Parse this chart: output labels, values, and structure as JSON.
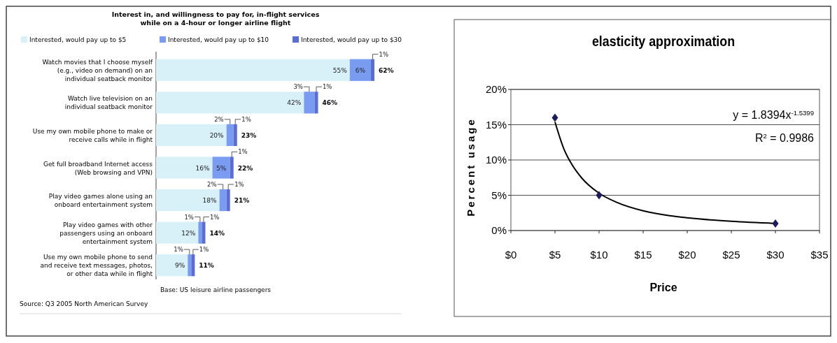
{
  "chart_data": [
    {
      "type": "bar",
      "orientation": "horizontal",
      "stacked": true,
      "title": "Interest in, and willingness to pay for, in-flight services\nwhile on a 4-hour or longer airline flight",
      "categories": [
        "Watch movies that I choose myself (e.g., video on demand) on an individual seatback monitor",
        "Watch live television on an individual seatback monitor",
        "Use my own mobile phone to make or receive calls while in flight",
        "Get full broadband Internet access (Web browsing and VPN)",
        "Play video games alone using an onboard entertainment system",
        "Play video games with other passengers using an onboard entertainment system",
        "Use my own mobile phone to send and receive text messages, photos, or other data while in flight"
      ],
      "series": [
        {
          "name": "Interested, would pay up to $5",
          "color": "#d8f0f8",
          "values": [
            55,
            42,
            20,
            16,
            18,
            12,
            9
          ],
          "value_labels": [
            "55%",
            "42%",
            "20%",
            "16%",
            "18%",
            "12%",
            "9%"
          ]
        },
        {
          "name": "Interested, would pay up to $10",
          "color": "#7a9cf0",
          "values": [
            6,
            3,
            2,
            5,
            2,
            1,
            1
          ],
          "value_labels": [
            "6%",
            "3%",
            "2%",
            "5%",
            "2%",
            "1%",
            "1%"
          ]
        },
        {
          "name": "Interested, would pay up to $30",
          "color": "#5a6cd6",
          "values": [
            1,
            1,
            1,
            1,
            1,
            1,
            1
          ],
          "value_labels": [
            "1%",
            "1%",
            "1%",
            "1%",
            "1%",
            "1%",
            "1%"
          ]
        }
      ],
      "totals": [
        "62%",
        "46%",
        "23%",
        "22%",
        "21%",
        "14%",
        "11%"
      ],
      "legend": "top left",
      "tick_labels": "y",
      "annotations": [
        "Base: US leisure airline passengers",
        "Source: Q3 2005 North American Survey"
      ]
    },
    {
      "type": "scatter",
      "title": "elasticity approximation",
      "xlabel": "Price",
      "ylabel": "Percent usage",
      "series": [
        {
          "type": "scatter",
          "color": "#1c1c5c",
          "marker": "diamond",
          "x": [
            5,
            10,
            30
          ],
          "values": [
            16,
            5,
            1
          ]
        },
        {
          "type": "line",
          "color": "#000000",
          "marker": "none",
          "x": [
            5,
            6,
            7,
            8,
            10,
            12,
            15,
            18,
            20,
            25,
            30
          ],
          "values": [
            15.4,
            11.6,
            9.2,
            7.5,
            5.3,
            4.0,
            2.8,
            2.1,
            1.8,
            1.3,
            1.0
          ]
        }
      ],
      "xlim": [
        0,
        35
      ],
      "xticks": [
        {
          "value": 0,
          "label": "$0"
        },
        {
          "value": 5,
          "label": "$5"
        },
        {
          "value": 10,
          "label": "$10"
        },
        {
          "value": 15,
          "label": "$15"
        },
        {
          "value": 20,
          "label": "$20"
        },
        {
          "value": 25,
          "label": "$25"
        },
        {
          "value": 30,
          "label": "$30"
        },
        {
          "value": 35,
          "label": "$35"
        }
      ],
      "ylim": [
        0,
        20
      ],
      "yticks": [
        {
          "value": 0,
          "label": "0%"
        },
        {
          "value": 5,
          "label": "5%"
        },
        {
          "value": 10,
          "label": "10%"
        },
        {
          "value": 15,
          "label": "15%"
        },
        {
          "value": 20,
          "label": "20%"
        }
      ],
      "grid": "y",
      "annotations": [
        "y = 1.8394x$^{-1.5399}$",
        "R$^{2}$ = 0.9986"
      ]
    }
  ]
}
